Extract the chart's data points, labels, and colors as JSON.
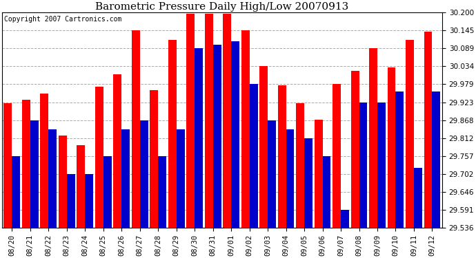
{
  "title": "Barometric Pressure Daily High/Low 20070913",
  "copyright": "Copyright 2007 Cartronics.com",
  "categories": [
    "08/20",
    "08/21",
    "08/22",
    "08/23",
    "08/24",
    "08/25",
    "08/26",
    "08/27",
    "08/28",
    "08/29",
    "08/30",
    "08/31",
    "09/01",
    "09/02",
    "09/03",
    "09/04",
    "09/05",
    "09/06",
    "09/07",
    "09/08",
    "09/09",
    "09/10",
    "09/11",
    "09/12"
  ],
  "highs": [
    29.92,
    29.93,
    29.95,
    29.82,
    29.79,
    29.97,
    30.01,
    30.145,
    29.96,
    30.115,
    30.195,
    30.195,
    30.195,
    30.145,
    30.034,
    29.975,
    29.92,
    29.87,
    29.979,
    30.02,
    30.089,
    30.03,
    30.115,
    30.14
  ],
  "lows": [
    29.757,
    29.868,
    29.84,
    29.702,
    29.702,
    29.757,
    29.84,
    29.868,
    29.757,
    29.84,
    30.089,
    30.1,
    30.11,
    29.979,
    29.868,
    29.84,
    29.812,
    29.757,
    29.591,
    29.923,
    29.923,
    29.957,
    29.72,
    29.957
  ],
  "high_color": "#ff0000",
  "low_color": "#0000cc",
  "bg_color": "#ffffff",
  "ylim_min": 29.536,
  "ylim_max": 30.2,
  "yticks": [
    29.536,
    29.591,
    29.646,
    29.702,
    29.757,
    29.812,
    29.868,
    29.923,
    29.979,
    30.034,
    30.089,
    30.145,
    30.2
  ],
  "grid_color": "#aaaaaa",
  "title_fontsize": 11,
  "copyright_fontsize": 7,
  "tick_fontsize": 7.5,
  "bar_width": 0.45
}
